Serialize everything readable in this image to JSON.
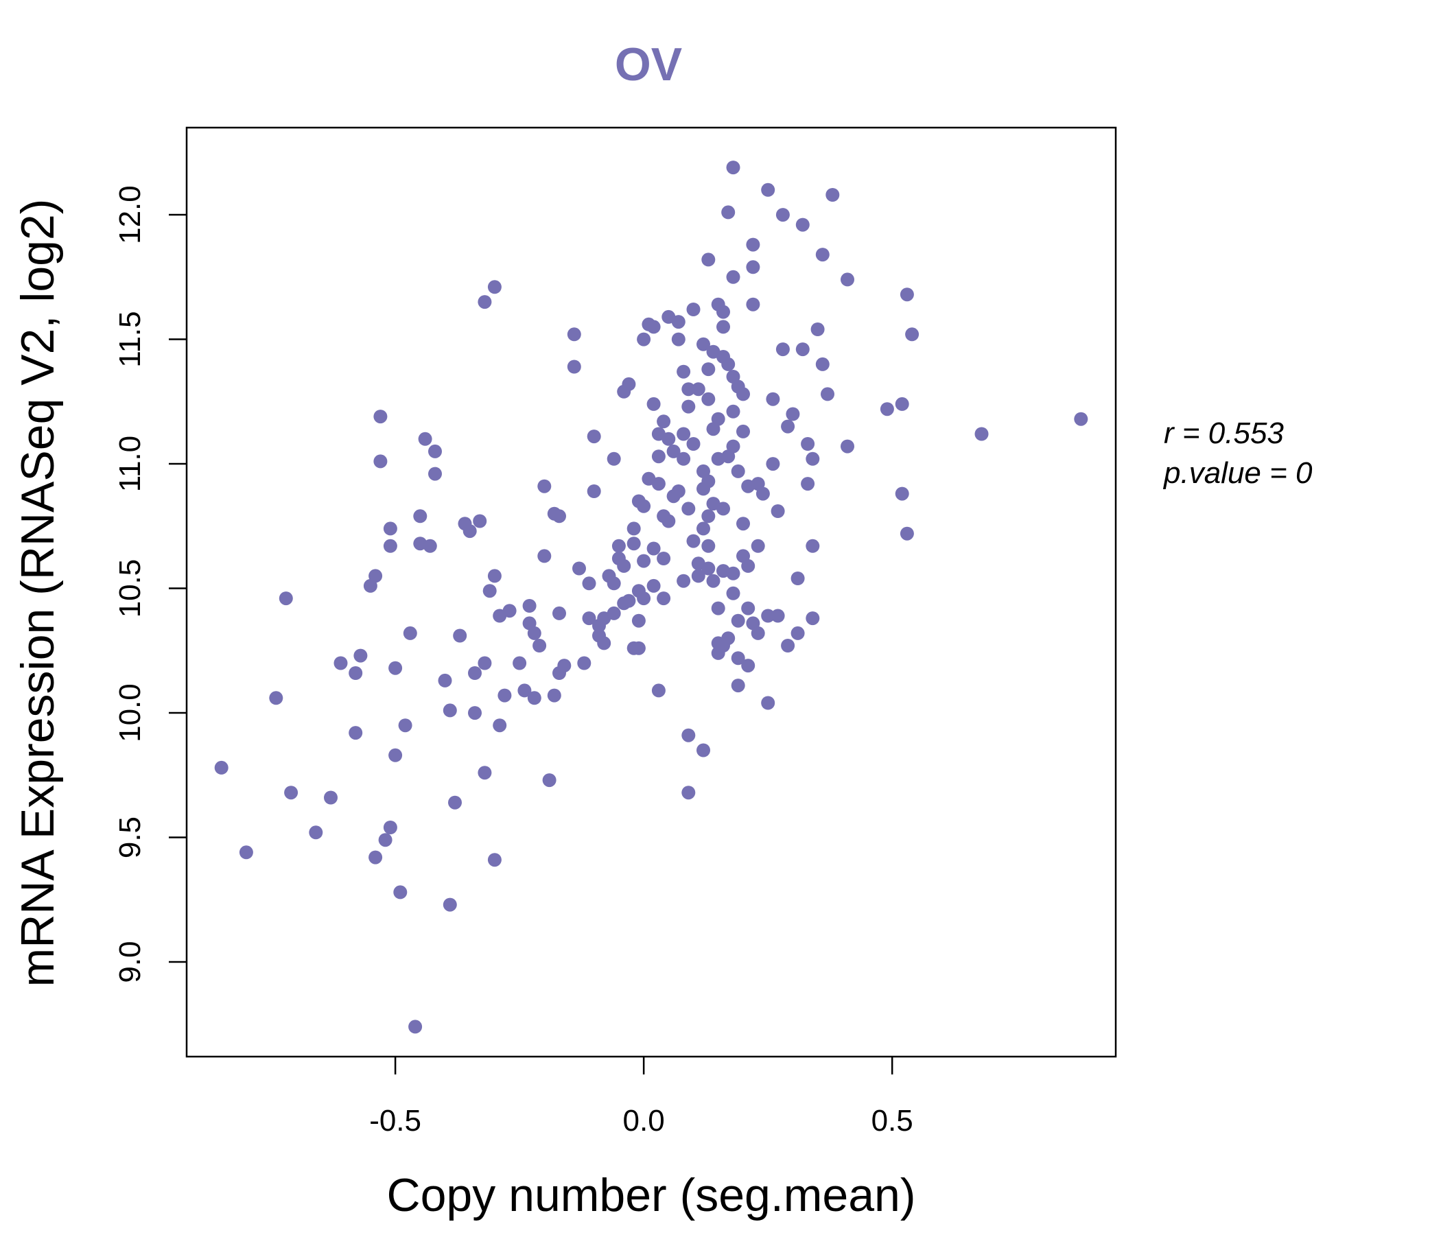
{
  "colors": {
    "accent": "#7570b3",
    "frame": "#000000",
    "background": "#ffffff"
  },
  "chart_data": {
    "type": "scatter",
    "title": "OV",
    "xlabel": "Copy number (seg.mean)",
    "ylabel": "mRNA Expression (RNASeq V2, log2)",
    "xlim": [
      -0.92,
      0.95
    ],
    "ylim": [
      8.62,
      12.35
    ],
    "x_ticks": [
      -0.5,
      0.0,
      0.5
    ],
    "x_tick_labels": [
      "-0.5",
      "0.0",
      "0.5"
    ],
    "y_ticks": [
      9.0,
      9.5,
      10.0,
      10.5,
      11.0,
      11.5,
      12.0
    ],
    "y_tick_labels": [
      "9.0",
      "9.5",
      "10.0",
      "10.5",
      "11.0",
      "11.5",
      "12.0"
    ],
    "grid": false,
    "stats": {
      "r_label": "r = 0.553",
      "p_label": "p.value = 0"
    },
    "points": [
      [
        -0.85,
        9.78
      ],
      [
        -0.8,
        9.44
      ],
      [
        -0.74,
        10.06
      ],
      [
        -0.72,
        10.46
      ],
      [
        -0.71,
        9.68
      ],
      [
        -0.66,
        9.52
      ],
      [
        -0.63,
        9.66
      ],
      [
        -0.61,
        10.2
      ],
      [
        -0.58,
        10.16
      ],
      [
        -0.58,
        9.92
      ],
      [
        -0.57,
        10.23
      ],
      [
        -0.55,
        10.51
      ],
      [
        -0.54,
        9.42
      ],
      [
        -0.54,
        10.55
      ],
      [
        -0.53,
        11.19
      ],
      [
        -0.53,
        11.01
      ],
      [
        -0.52,
        9.49
      ],
      [
        -0.51,
        9.54
      ],
      [
        -0.51,
        10.74
      ],
      [
        -0.51,
        10.67
      ],
      [
        -0.5,
        9.83
      ],
      [
        -0.5,
        10.18
      ],
      [
        -0.49,
        9.28
      ],
      [
        -0.48,
        9.95
      ],
      [
        -0.47,
        10.32
      ],
      [
        -0.46,
        8.74
      ],
      [
        -0.45,
        10.79
      ],
      [
        -0.45,
        10.68
      ],
      [
        -0.44,
        11.1
      ],
      [
        -0.43,
        10.67
      ],
      [
        -0.42,
        11.05
      ],
      [
        -0.42,
        10.96
      ],
      [
        -0.4,
        10.13
      ],
      [
        -0.39,
        10.01
      ],
      [
        -0.39,
        9.23
      ],
      [
        -0.38,
        9.64
      ],
      [
        -0.37,
        10.31
      ],
      [
        -0.36,
        10.76
      ],
      [
        -0.35,
        10.73
      ],
      [
        -0.34,
        10.16
      ],
      [
        -0.34,
        10.0
      ],
      [
        -0.33,
        10.77
      ],
      [
        -0.32,
        9.76
      ],
      [
        -0.32,
        10.2
      ],
      [
        -0.32,
        11.65
      ],
      [
        -0.31,
        10.49
      ],
      [
        -0.3,
        10.55
      ],
      [
        -0.3,
        9.41
      ],
      [
        -0.3,
        11.71
      ],
      [
        -0.29,
        10.39
      ],
      [
        -0.29,
        9.95
      ],
      [
        -0.28,
        10.07
      ],
      [
        -0.27,
        10.41
      ],
      [
        -0.25,
        10.2
      ],
      [
        -0.24,
        10.09
      ],
      [
        -0.23,
        10.36
      ],
      [
        -0.23,
        10.43
      ],
      [
        -0.22,
        10.32
      ],
      [
        -0.22,
        10.06
      ],
      [
        -0.21,
        10.27
      ],
      [
        -0.2,
        10.91
      ],
      [
        -0.2,
        10.63
      ],
      [
        -0.19,
        9.73
      ],
      [
        -0.18,
        10.07
      ],
      [
        -0.18,
        10.8
      ],
      [
        -0.17,
        10.16
      ],
      [
        -0.17,
        10.79
      ],
      [
        -0.17,
        10.4
      ],
      [
        -0.16,
        10.19
      ],
      [
        -0.14,
        11.52
      ],
      [
        -0.14,
        11.39
      ],
      [
        -0.13,
        10.58
      ],
      [
        -0.12,
        10.2
      ],
      [
        -0.11,
        10.52
      ],
      [
        -0.11,
        10.38
      ],
      [
        -0.1,
        10.89
      ],
      [
        -0.1,
        11.11
      ],
      [
        -0.09,
        10.31
      ],
      [
        -0.09,
        10.35
      ],
      [
        -0.08,
        10.28
      ],
      [
        -0.08,
        10.38
      ],
      [
        -0.07,
        10.55
      ],
      [
        -0.06,
        10.4
      ],
      [
        -0.06,
        10.52
      ],
      [
        -0.06,
        11.02
      ],
      [
        -0.05,
        10.67
      ],
      [
        -0.05,
        10.62
      ],
      [
        -0.04,
        10.44
      ],
      [
        -0.04,
        10.59
      ],
      [
        -0.04,
        11.29
      ],
      [
        -0.03,
        11.32
      ],
      [
        -0.03,
        10.45
      ],
      [
        -0.02,
        10.26
      ],
      [
        -0.02,
        10.74
      ],
      [
        -0.02,
        10.68
      ],
      [
        -0.01,
        10.26
      ],
      [
        -0.01,
        10.49
      ],
      [
        -0.01,
        10.37
      ],
      [
        -0.01,
        10.85
      ],
      [
        0.0,
        11.5
      ],
      [
        0.0,
        10.83
      ],
      [
        0.0,
        10.46
      ],
      [
        0.0,
        10.61
      ],
      [
        0.01,
        11.56
      ],
      [
        0.01,
        10.94
      ],
      [
        0.02,
        10.66
      ],
      [
        0.02,
        10.51
      ],
      [
        0.02,
        11.24
      ],
      [
        0.02,
        11.55
      ],
      [
        0.03,
        11.12
      ],
      [
        0.03,
        10.09
      ],
      [
        0.03,
        10.92
      ],
      [
        0.03,
        11.03
      ],
      [
        0.04,
        10.62
      ],
      [
        0.04,
        11.17
      ],
      [
        0.04,
        10.46
      ],
      [
        0.04,
        10.79
      ],
      [
        0.05,
        11.59
      ],
      [
        0.05,
        10.77
      ],
      [
        0.05,
        11.1
      ],
      [
        0.06,
        10.87
      ],
      [
        0.06,
        11.05
      ],
      [
        0.07,
        11.57
      ],
      [
        0.07,
        10.89
      ],
      [
        0.07,
        11.5
      ],
      [
        0.08,
        10.53
      ],
      [
        0.08,
        11.37
      ],
      [
        0.08,
        11.02
      ],
      [
        0.08,
        11.12
      ],
      [
        0.09,
        9.91
      ],
      [
        0.09,
        11.3
      ],
      [
        0.09,
        10.82
      ],
      [
        0.09,
        11.23
      ],
      [
        0.09,
        9.68
      ],
      [
        0.1,
        11.62
      ],
      [
        0.1,
        11.08
      ],
      [
        0.1,
        10.69
      ],
      [
        0.11,
        10.55
      ],
      [
        0.11,
        11.3
      ],
      [
        0.11,
        10.6
      ],
      [
        0.12,
        10.74
      ],
      [
        0.12,
        9.85
      ],
      [
        0.12,
        11.48
      ],
      [
        0.12,
        10.97
      ],
      [
        0.12,
        10.9
      ],
      [
        0.13,
        11.82
      ],
      [
        0.13,
        11.38
      ],
      [
        0.13,
        10.58
      ],
      [
        0.13,
        10.67
      ],
      [
        0.13,
        10.93
      ],
      [
        0.13,
        10.79
      ],
      [
        0.13,
        11.26
      ],
      [
        0.14,
        11.45
      ],
      [
        0.14,
        10.84
      ],
      [
        0.14,
        11.14
      ],
      [
        0.14,
        10.53
      ],
      [
        0.15,
        10.28
      ],
      [
        0.15,
        10.24
      ],
      [
        0.15,
        11.64
      ],
      [
        0.15,
        10.42
      ],
      [
        0.15,
        11.18
      ],
      [
        0.15,
        11.02
      ],
      [
        0.16,
        11.61
      ],
      [
        0.16,
        10.82
      ],
      [
        0.16,
        11.55
      ],
      [
        0.16,
        10.27
      ],
      [
        0.16,
        11.43
      ],
      [
        0.16,
        10.57
      ],
      [
        0.17,
        12.01
      ],
      [
        0.17,
        10.3
      ],
      [
        0.17,
        11.03
      ],
      [
        0.17,
        11.4
      ],
      [
        0.18,
        11.75
      ],
      [
        0.18,
        10.56
      ],
      [
        0.18,
        11.21
      ],
      [
        0.18,
        12.19
      ],
      [
        0.18,
        11.35
      ],
      [
        0.18,
        10.48
      ],
      [
        0.18,
        11.07
      ],
      [
        0.19,
        10.37
      ],
      [
        0.19,
        10.22
      ],
      [
        0.19,
        10.11
      ],
      [
        0.19,
        11.31
      ],
      [
        0.19,
        10.97
      ],
      [
        0.2,
        11.28
      ],
      [
        0.2,
        10.76
      ],
      [
        0.2,
        11.13
      ],
      [
        0.2,
        10.63
      ],
      [
        0.21,
        10.59
      ],
      [
        0.21,
        10.91
      ],
      [
        0.21,
        10.42
      ],
      [
        0.21,
        10.19
      ],
      [
        0.22,
        10.36
      ],
      [
        0.22,
        11.79
      ],
      [
        0.22,
        11.64
      ],
      [
        0.22,
        11.88
      ],
      [
        0.23,
        10.32
      ],
      [
        0.23,
        10.92
      ],
      [
        0.23,
        10.67
      ],
      [
        0.24,
        10.88
      ],
      [
        0.25,
        12.1
      ],
      [
        0.25,
        10.04
      ],
      [
        0.25,
        10.39
      ],
      [
        0.26,
        11.26
      ],
      [
        0.26,
        11.0
      ],
      [
        0.27,
        10.81
      ],
      [
        0.27,
        10.39
      ],
      [
        0.28,
        12.0
      ],
      [
        0.28,
        11.46
      ],
      [
        0.29,
        11.15
      ],
      [
        0.29,
        10.27
      ],
      [
        0.3,
        11.2
      ],
      [
        0.31,
        10.32
      ],
      [
        0.31,
        10.54
      ],
      [
        0.32,
        11.96
      ],
      [
        0.32,
        11.46
      ],
      [
        0.33,
        11.08
      ],
      [
        0.33,
        10.92
      ],
      [
        0.34,
        10.67
      ],
      [
        0.34,
        11.02
      ],
      [
        0.34,
        10.38
      ],
      [
        0.35,
        11.54
      ],
      [
        0.36,
        11.84
      ],
      [
        0.36,
        11.4
      ],
      [
        0.37,
        11.28
      ],
      [
        0.38,
        12.08
      ],
      [
        0.41,
        11.74
      ],
      [
        0.41,
        11.07
      ],
      [
        0.49,
        11.22
      ],
      [
        0.52,
        11.24
      ],
      [
        0.52,
        10.88
      ],
      [
        0.53,
        10.72
      ],
      [
        0.53,
        11.68
      ],
      [
        0.54,
        11.52
      ],
      [
        0.68,
        11.12
      ],
      [
        0.88,
        11.18
      ]
    ]
  }
}
